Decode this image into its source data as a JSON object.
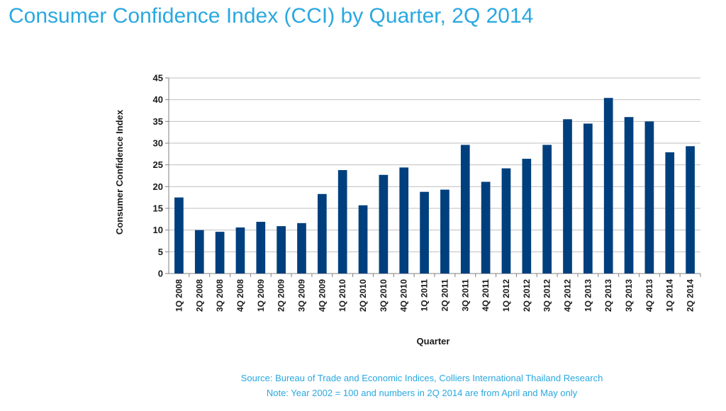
{
  "header": {
    "title": "Consumer Confidence Index (CCI) by Quarter, 2Q 2014"
  },
  "footer": {
    "source": "Source: Bureau of Trade and Economic Indices, Colliers International Thailand Research",
    "note": "Note: Year 2002 = 100 and numbers in 2Q 2014 are from April and May only"
  },
  "colors": {
    "bar": "#003f7d",
    "grid": "#bfbfbf",
    "accent": "#29a8e0"
  },
  "chart_data": {
    "type": "bar",
    "title": "",
    "xlabel": "Quarter",
    "ylabel": "Consumer Confidence Index",
    "ylim": [
      0,
      45
    ],
    "yticks": [
      0,
      5,
      10,
      15,
      20,
      25,
      30,
      35,
      40,
      45
    ],
    "grid": true,
    "legend": "none",
    "categories": [
      "1Q 2008",
      "2Q 2008",
      "3Q 2008",
      "4Q 2008",
      "1Q 2009",
      "2Q 2009",
      "3Q 2009",
      "4Q 2009",
      "1Q 2010",
      "2Q 2010",
      "3Q 2010",
      "4Q 2010",
      "1Q 2011",
      "2Q 2011",
      "3Q 2011",
      "4Q 2011",
      "1Q 2012",
      "2Q 2012",
      "3Q 2012",
      "4Q 2012",
      "1Q 2013",
      "2Q 2013",
      "3Q 2013",
      "4Q 2013",
      "1Q 2014",
      "2Q 2014"
    ],
    "values": [
      17.5,
      10.0,
      9.6,
      10.6,
      11.9,
      10.9,
      11.6,
      18.3,
      23.8,
      15.7,
      22.7,
      24.4,
      18.8,
      19.3,
      29.6,
      21.1,
      24.2,
      26.4,
      29.6,
      35.5,
      34.5,
      40.4,
      36.0,
      35.0,
      27.9,
      29.3
    ]
  }
}
